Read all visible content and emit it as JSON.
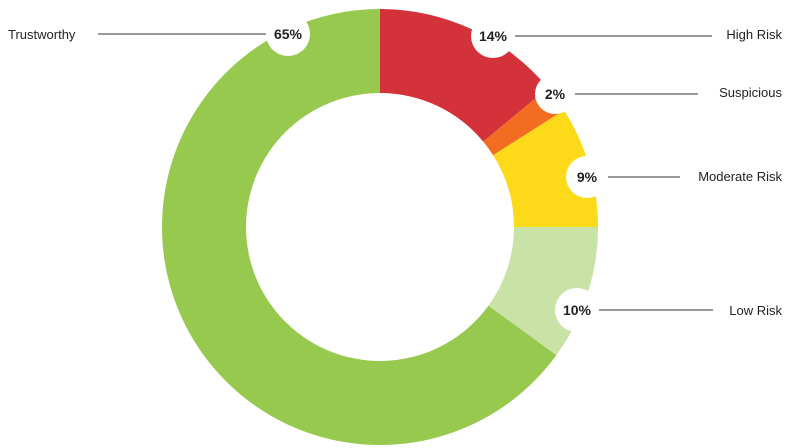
{
  "chart_data": {
    "type": "pie",
    "donut": true,
    "title": "",
    "slices": [
      {
        "label": "High Risk",
        "value": 14,
        "value_label": "14%",
        "color": "#d3323a"
      },
      {
        "label": "Suspicious",
        "value": 2,
        "value_label": "2%",
        "color": "#f26d21"
      },
      {
        "label": "Moderate Risk",
        "value": 9,
        "value_label": "9%",
        "color": "#fcd919"
      },
      {
        "label": "Low Risk",
        "value": 10,
        "value_label": "10%",
        "color": "#c9e3a6"
      },
      {
        "label": "Trustworthy",
        "value": 65,
        "value_label": "65%",
        "color": "#97c94f"
      }
    ],
    "start_position": "top",
    "direction": "clockwise",
    "legend": "none",
    "labels": "outside with leader lines"
  }
}
